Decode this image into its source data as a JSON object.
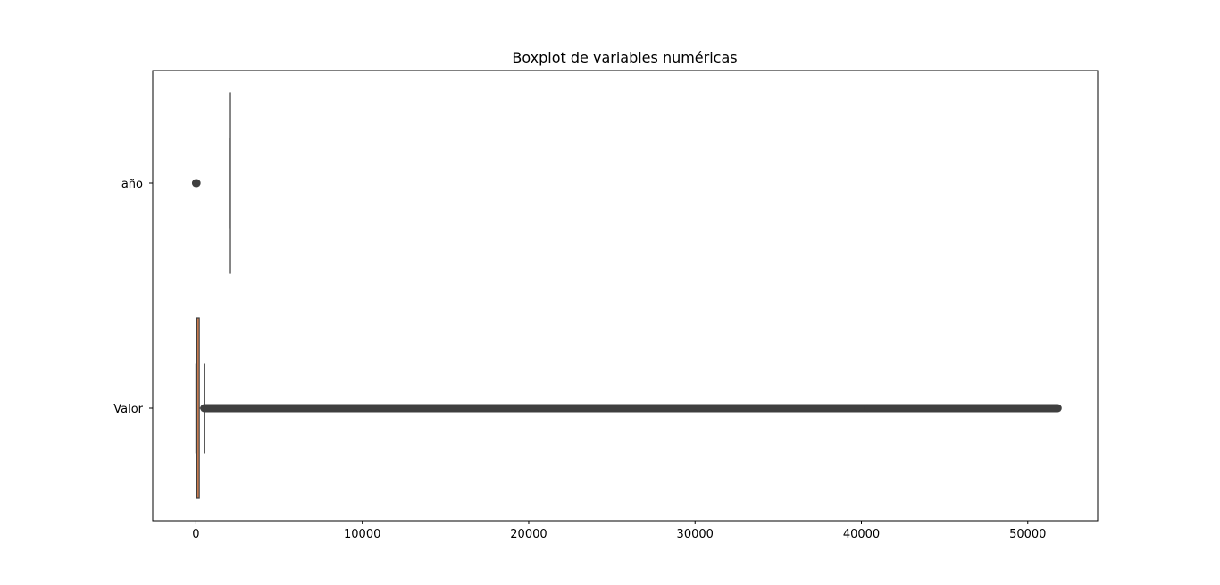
{
  "chart_data": {
    "type": "boxplot",
    "orientation": "horizontal",
    "title": "Boxplot de variables numéricas",
    "xlabel": "",
    "ylabel": "",
    "xlim": [
      -2600,
      54200
    ],
    "xticks": [
      0,
      10000,
      20000,
      30000,
      40000,
      50000
    ],
    "xtick_labels": [
      "0",
      "10000",
      "20000",
      "30000",
      "40000",
      "50000"
    ],
    "grid": false,
    "legend": "none",
    "categories": [
      "año",
      "Valor"
    ],
    "series": [
      {
        "name": "año",
        "color": "#1f77b4",
        "box": {
          "q1": 2019,
          "median": 2020,
          "q3": 2021,
          "whisker_low": 2016,
          "whisker_high": 2022
        },
        "outliers": [
          {
            "from": 0,
            "to": 40,
            "continuous": true
          }
        ]
      },
      {
        "name": "Valor",
        "color": "#dd8452",
        "box": {
          "q1": 10,
          "median": 60,
          "q3": 200,
          "whisker_low": 0,
          "whisker_high": 500
        },
        "outliers": [
          {
            "from": 500,
            "to": 40400,
            "continuous": true
          },
          {
            "from": 40400,
            "to": 51800,
            "continuous": true
          }
        ]
      }
    ]
  }
}
